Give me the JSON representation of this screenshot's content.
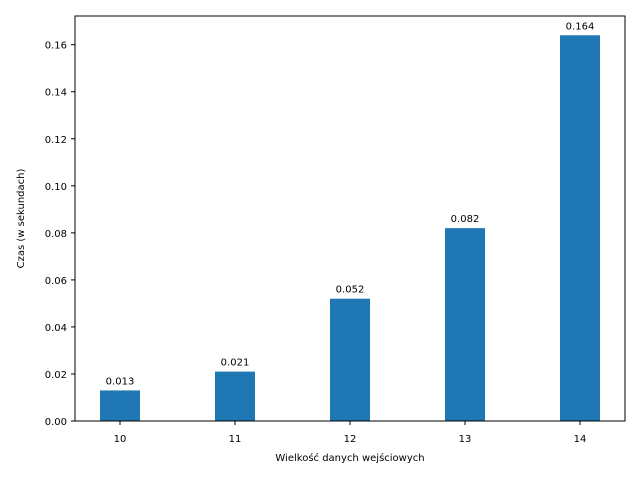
{
  "chart_data": {
    "type": "bar",
    "categories": [
      "10",
      "11",
      "12",
      "13",
      "14"
    ],
    "values": [
      0.013,
      0.021,
      0.052,
      0.082,
      0.164
    ],
    "data_labels": [
      "0.013",
      "0.021",
      "0.052",
      "0.082",
      "0.164"
    ],
    "title": "",
    "xlabel": "Wielkość danych wejściowych",
    "ylabel": "Czas (w sekundach)",
    "ylim": [
      0,
      0.1722
    ],
    "yticks": [
      0.0,
      0.02,
      0.04,
      0.06,
      0.08,
      0.1,
      0.12,
      0.14,
      0.16
    ],
    "ytick_labels": [
      "0.00",
      "0.02",
      "0.04",
      "0.06",
      "0.08",
      "0.10",
      "0.12",
      "0.14",
      "0.16"
    ],
    "grid": false,
    "bar_color": "#1f77b4"
  }
}
